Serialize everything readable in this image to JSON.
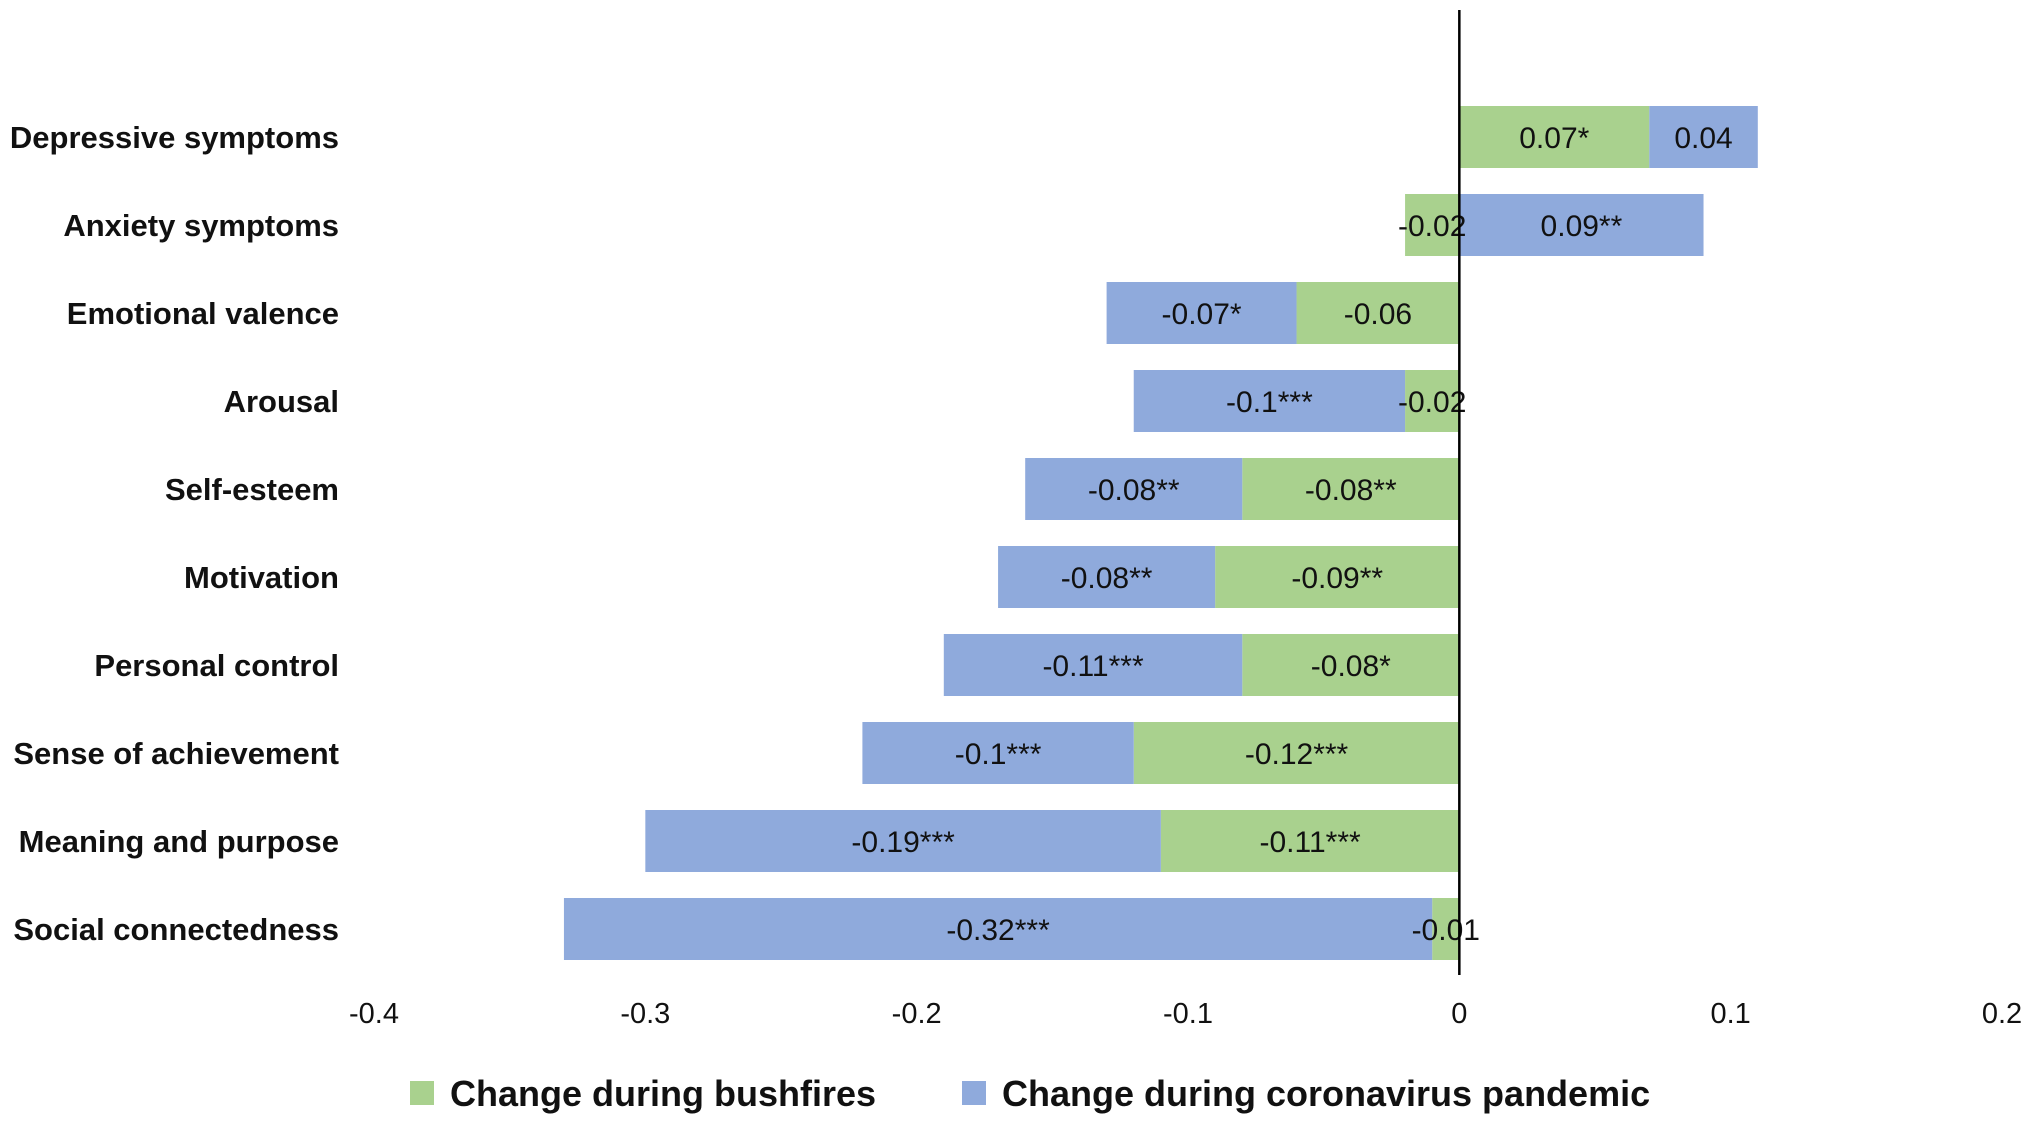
{
  "chart_data": {
    "type": "bar",
    "orientation": "horizontal",
    "stacked": true,
    "title": "",
    "xlabel": "",
    "ylabel": "",
    "xlim": [
      -0.4,
      0.2
    ],
    "x_ticks": [
      "-0.4",
      "-0.3",
      "-0.2",
      "-0.1",
      "0",
      "0.1",
      "0.2"
    ],
    "x_tick_values": [
      -0.4,
      -0.3,
      -0.2,
      -0.1,
      0,
      0.1,
      0.2
    ],
    "grid": false,
    "legend_position": "bottom",
    "categories": [
      "Depressive symptoms",
      "Anxiety symptoms",
      "Emotional valence",
      "Arousal",
      "Self-esteem",
      "Motivation",
      "Personal control",
      "Sense of achievement",
      "Meaning and purpose",
      "Social connectedness"
    ],
    "series": [
      {
        "name": "Change during bushfires",
        "color": "#a9d18e",
        "values": [
          0.07,
          -0.02,
          -0.06,
          -0.02,
          -0.08,
          -0.09,
          -0.08,
          -0.12,
          -0.11,
          -0.01
        ],
        "labels": [
          "0.07*",
          "-0.02",
          "-0.06",
          "-0.02",
          "-0.08**",
          "-0.09**",
          "-0.08*",
          "-0.12***",
          "-0.11***",
          "-0.01"
        ]
      },
      {
        "name": "Change during coronavirus pandemic",
        "color": "#8faadc",
        "values": [
          0.04,
          0.09,
          -0.07,
          -0.1,
          -0.08,
          -0.08,
          -0.11,
          -0.1,
          -0.19,
          -0.32
        ],
        "labels": [
          "0.04",
          "0.09**",
          "-0.07*",
          "-0.1***",
          "-0.08**",
          "-0.08**",
          "-0.11***",
          "-0.1***",
          "-0.19***",
          "-0.32***"
        ]
      }
    ]
  }
}
